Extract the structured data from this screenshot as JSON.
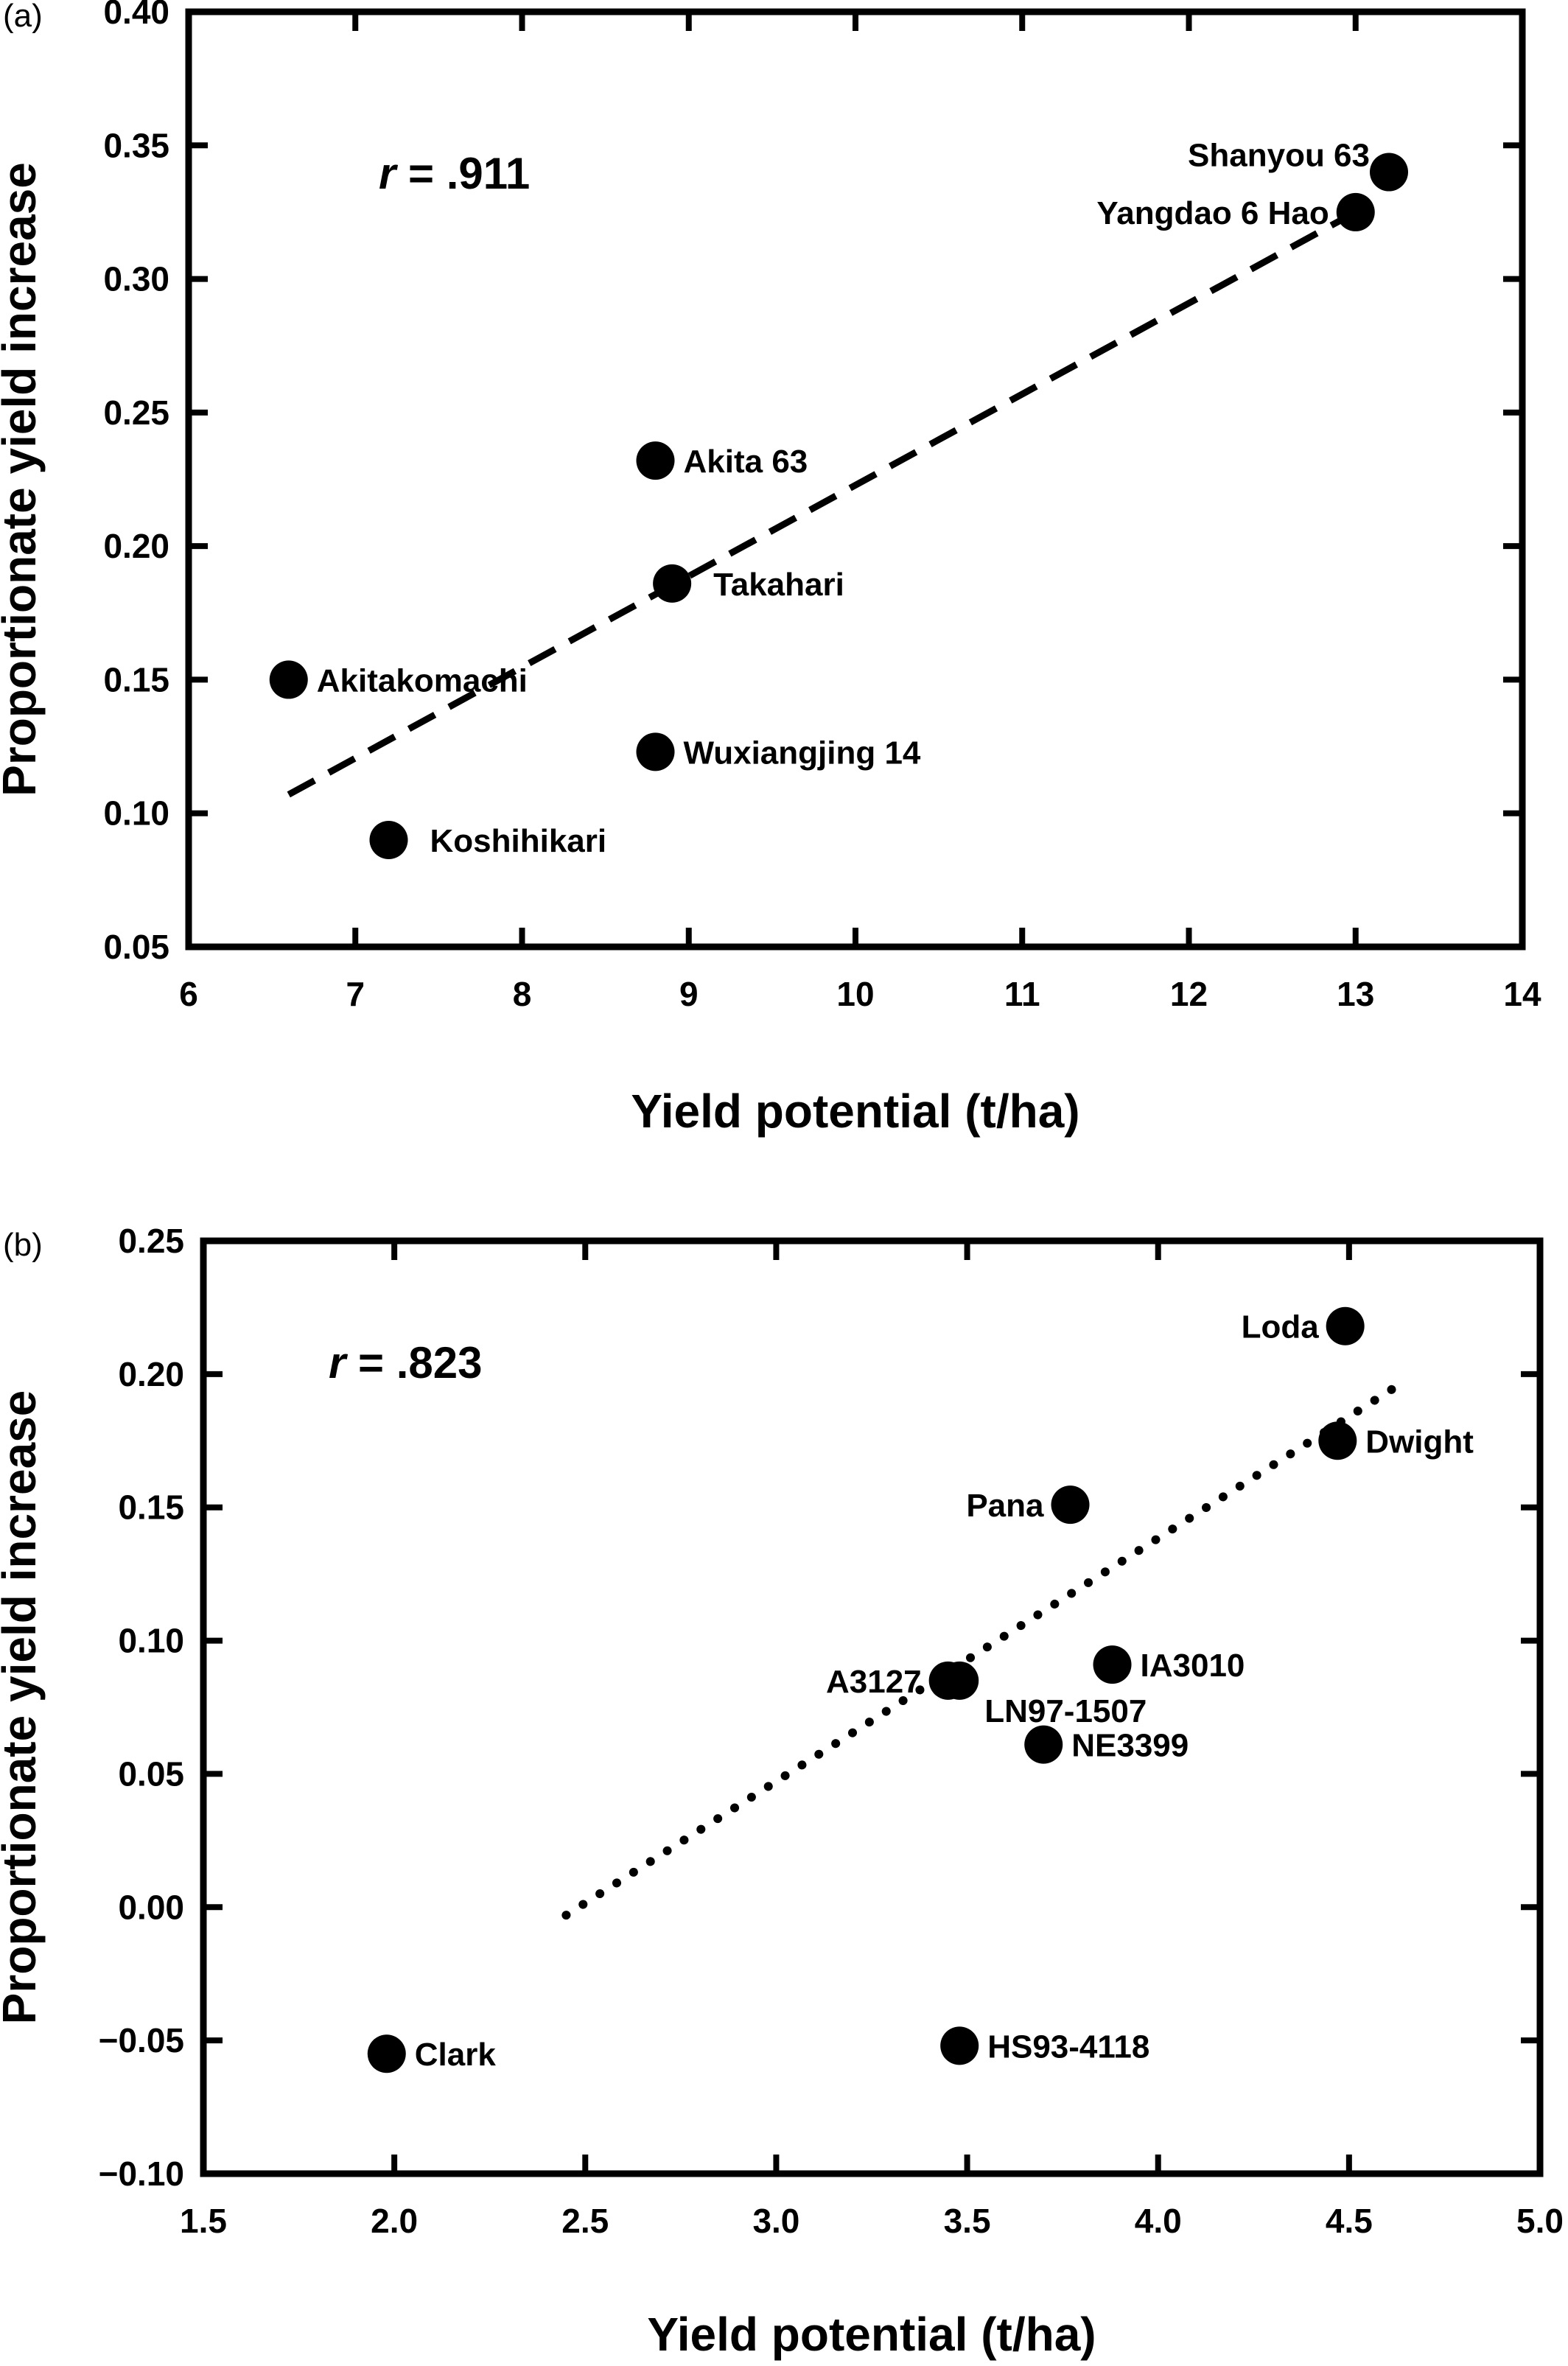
{
  "chart_data": [
    {
      "panel": "(a)",
      "type": "scatter",
      "title": "",
      "xlabel": "Yield potential (t/ha)",
      "ylabel": "Proportionate yield increase",
      "xlim": [
        6,
        14
      ],
      "ylim": [
        0.05,
        0.4
      ],
      "xticks": [
        6,
        7,
        8,
        9,
        10,
        11,
        12,
        13,
        14
      ],
      "yticks": [
        0.05,
        0.1,
        0.15,
        0.2,
        0.25,
        0.3,
        0.35,
        0.4
      ],
      "xtick_decimals": 0,
      "ytick_decimals": 2,
      "annotation_r": ".911",
      "points": [
        {
          "label": "Shanyou 63",
          "x": 13.2,
          "y": 0.34,
          "label_pos": "left-up"
        },
        {
          "label": "Yangdao 6 Hao",
          "x": 13.0,
          "y": 0.325,
          "label_pos": "left"
        },
        {
          "label": "Akita 63",
          "x": 8.8,
          "y": 0.232,
          "label_pos": "right"
        },
        {
          "label": "Takahari",
          "x": 8.9,
          "y": 0.186,
          "label_pos": "right-far"
        },
        {
          "label": "Akitakomachi",
          "x": 6.6,
          "y": 0.15,
          "label_pos": "right"
        },
        {
          "label": "Wuxiangjing 14",
          "x": 8.8,
          "y": 0.123,
          "label_pos": "right"
        },
        {
          "label": "Koshihikari",
          "x": 7.2,
          "y": 0.09,
          "label_pos": "right-far"
        }
      ],
      "trendline": {
        "style": "dashed",
        "x": [
          6.6,
          13.0
        ],
        "y": [
          0.107,
          0.325
        ]
      }
    },
    {
      "panel": "(b)",
      "type": "scatter",
      "title": "",
      "xlabel": "Yield potential (t/ha)",
      "ylabel": "Proportionate yield increase",
      "xlim": [
        1.5,
        5.0
      ],
      "ylim": [
        -0.1,
        0.25
      ],
      "xticks": [
        1.5,
        2.0,
        2.5,
        3.0,
        3.5,
        4.0,
        4.5,
        5.0
      ],
      "yticks": [
        -0.1,
        -0.05,
        0.0,
        0.05,
        0.1,
        0.15,
        0.2,
        0.25
      ],
      "xtick_decimals": 1,
      "ytick_decimals": 2,
      "annotation_r": ".823",
      "points": [
        {
          "label": "Loda",
          "x": 4.49,
          "y": 0.218,
          "label_pos": "left"
        },
        {
          "label": "Dwight",
          "x": 4.47,
          "y": 0.175,
          "label_pos": "right"
        },
        {
          "label": "Pana",
          "x": 3.77,
          "y": 0.151,
          "label_pos": "left"
        },
        {
          "label": "IA3010",
          "x": 3.88,
          "y": 0.091,
          "label_pos": "right"
        },
        {
          "label": "A3127",
          "x": 3.45,
          "y": 0.085,
          "label_pos": "left"
        },
        {
          "label": "LN97-1507",
          "x": 3.48,
          "y": 0.085,
          "label_pos": "right-down"
        },
        {
          "label": "NE3399",
          "x": 3.7,
          "y": 0.061,
          "label_pos": "right"
        },
        {
          "label": "Clark",
          "x": 1.98,
          "y": -0.055,
          "label_pos": "right"
        },
        {
          "label": "HS93-4118",
          "x": 3.48,
          "y": -0.052,
          "label_pos": "right"
        }
      ],
      "trendline": {
        "style": "dotted",
        "x": [
          2.45,
          4.62
        ],
        "y": [
          -0.003,
          0.195
        ]
      }
    }
  ]
}
